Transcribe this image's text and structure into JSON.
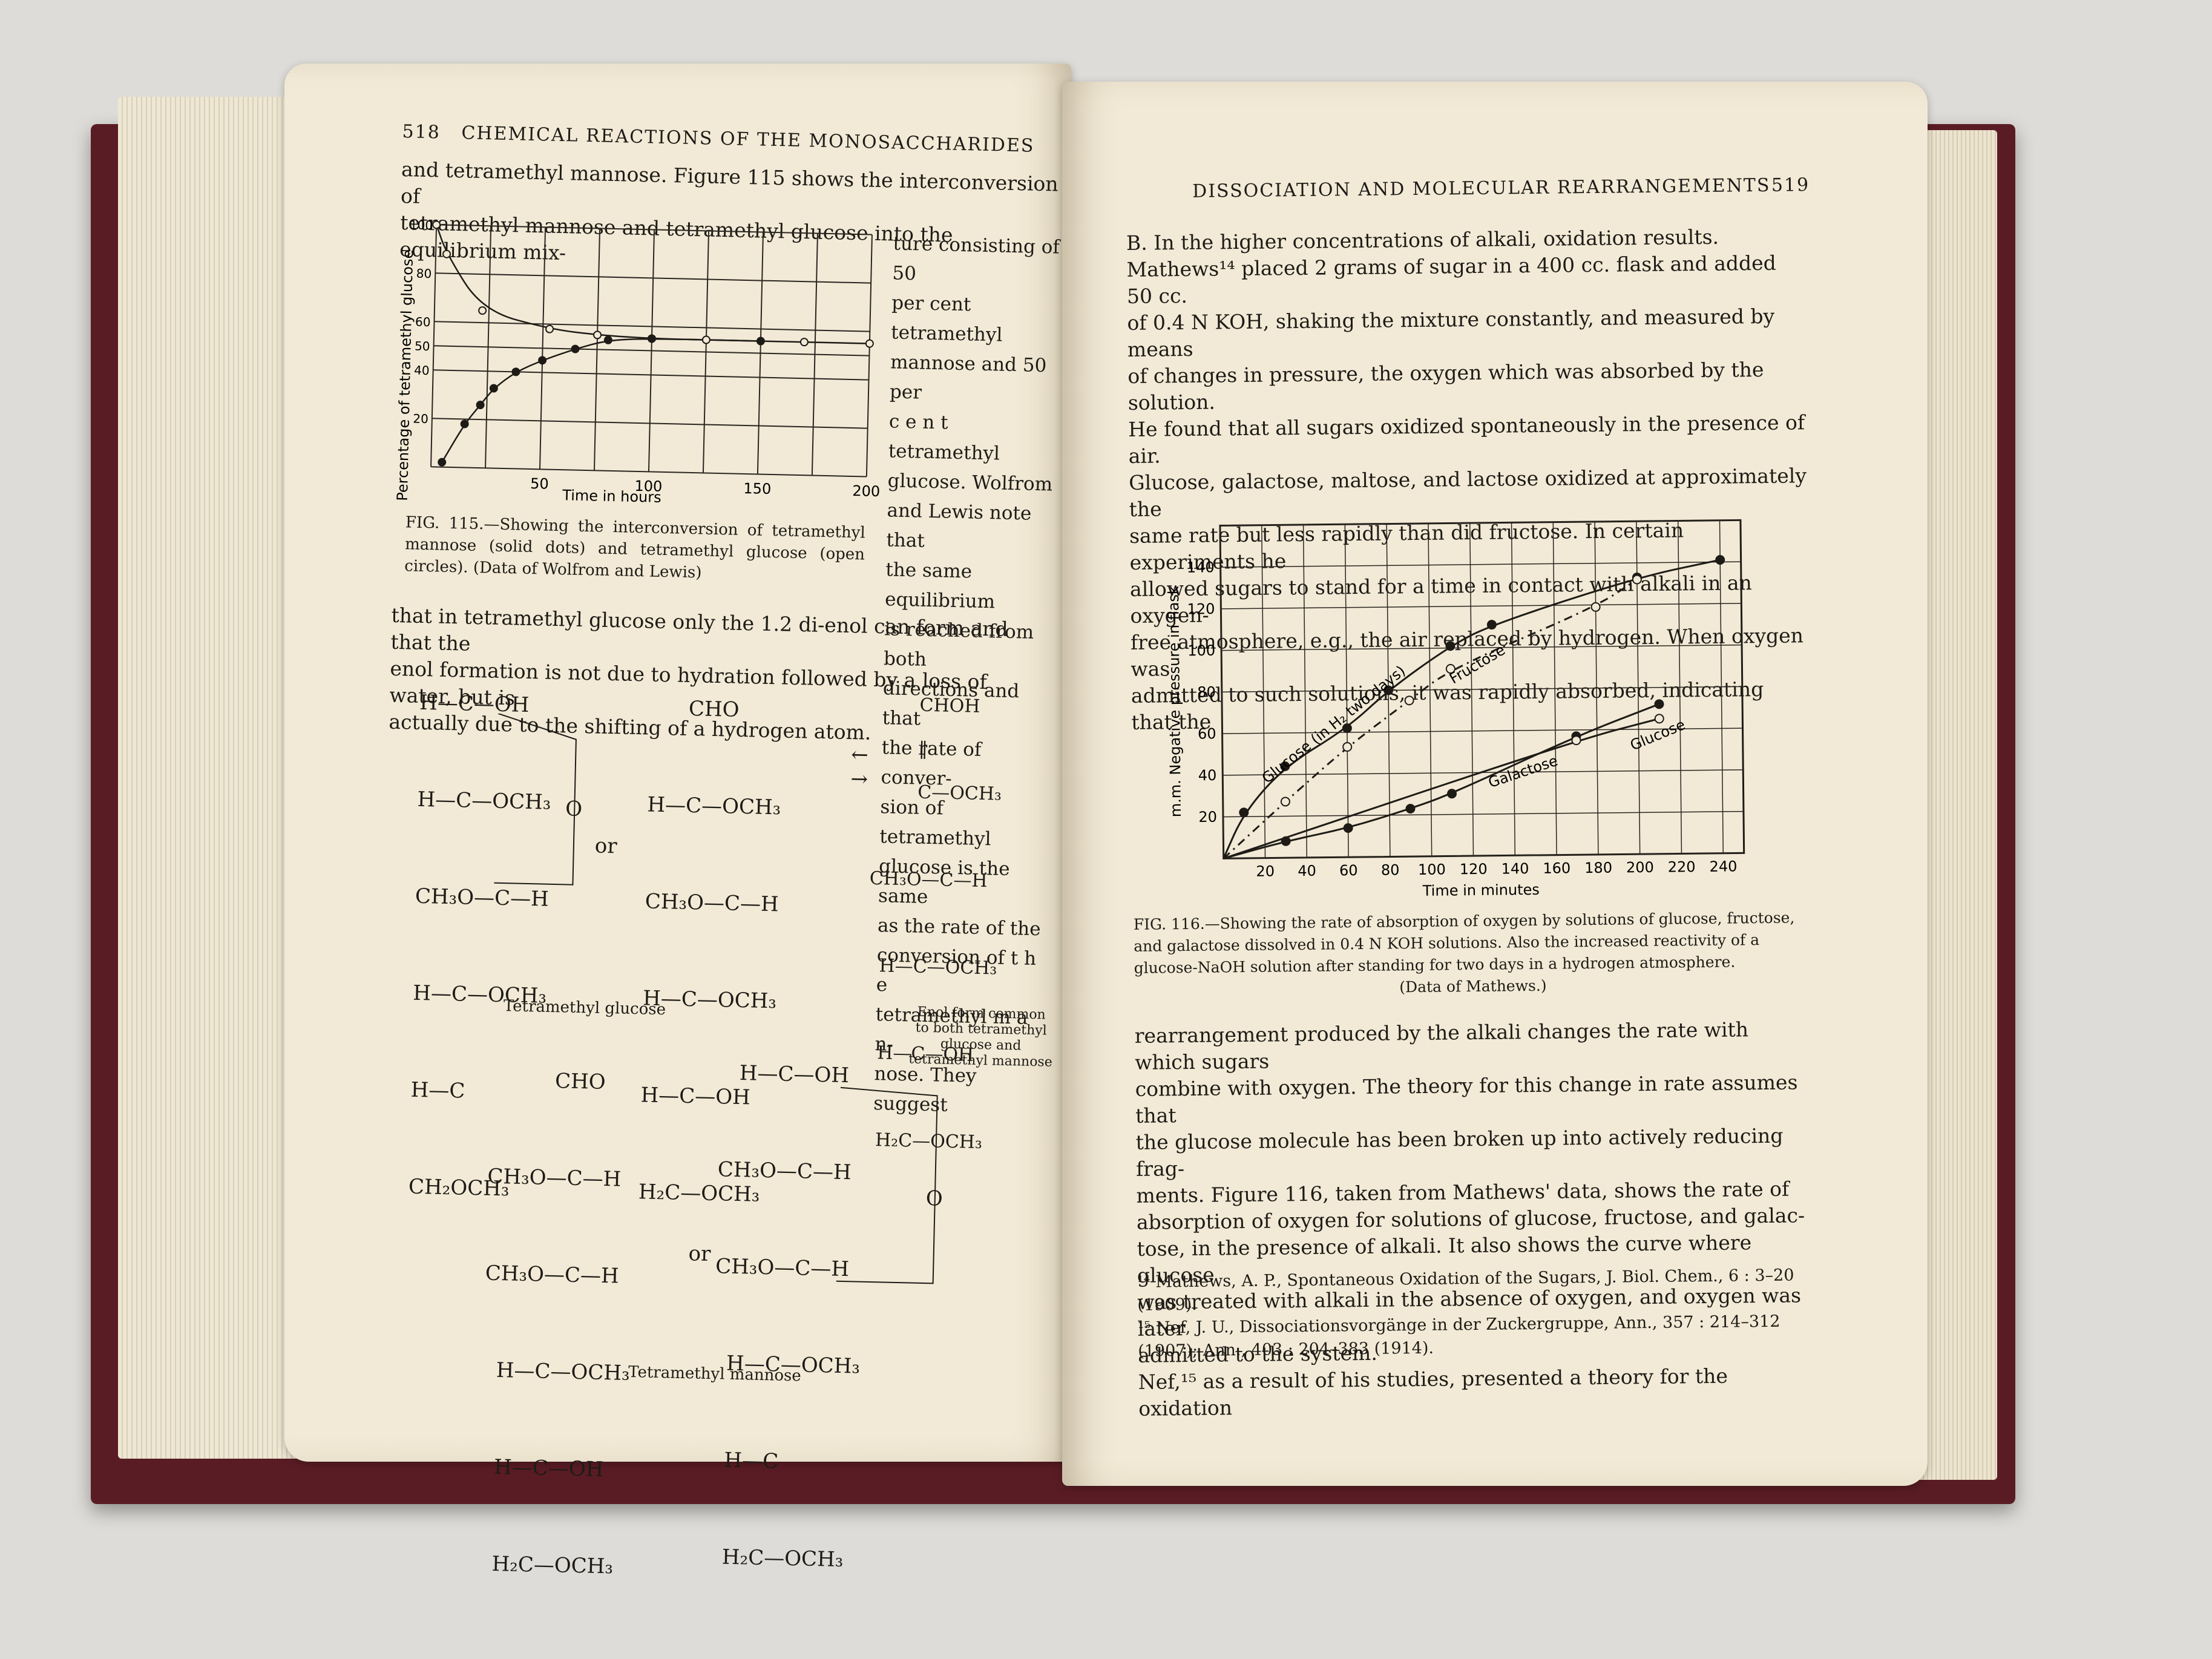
{
  "left_page": {
    "page_number": "518",
    "running_head": "CHEMICAL REACTIONS OF THE MONOSACCHARIDES",
    "intro_lines": [
      "and tetramethyl mannose.  Figure 115 shows the interconversion of",
      "tetramethyl mannose and tetramethyl glucose into the equilibrium mix-"
    ],
    "side_text_lines": [
      "ture consisting of 50",
      "per cent tetramethyl",
      "mannose and 50 per",
      "c e n t   tetramethyl",
      "glucose.    Wolfrom",
      "and Lewis note that",
      "the same equilibrium",
      "is reached from both",
      "directions and that",
      "the rate of conver-",
      "sion of tetramethyl",
      "glucose is the same",
      "as the rate of the",
      "conversion of t h e",
      "tetramethyl m a n-",
      "nose.  They suggest"
    ],
    "figure_caption": "FIG. 115.—Showing the interconversion of tetramethyl mannose (solid dots) and tetramethyl glucose (open circles).  (Data of Wolfrom and Lewis)",
    "after_lines": [
      "that in tetramethyl glucose only the 1.2 di-enol can form and that the",
      "enol formation is not due to hydration followed by a loss of water, but is",
      "actually due to the shifting of a hydrogen atom."
    ],
    "structures": {
      "s1": "H—C—OH\n\nH—C—OCH₃\n\nCH₃O—C—H\n\nH—C—OCH₃\n\nH—C\n\nCH₂OCH₃",
      "s1_label": "Tetramethyl glucose",
      "s1_ring_o": "O",
      "or1": "or",
      "s2": "      CHO\n\nH—C—OCH₃\n\nCH₃O—C—H\n\nH—C—OCH₃\n\nH—C—OH\n\nH₂C—OCH₃",
      "arrows": "←\n→",
      "s3": "        CHOH\n        ‖\n        C—OCH₃\n\nCH₃O—C—H\n\n  H—C—OCH₃\n\n  H—C—OH\n\n  H₂C—OCH₃",
      "s3_label": "Enol form common to both tetramethyl glucose and tetramethyl mannose",
      "s4": "          CHO\n\nCH₃O—C—H\n\nCH₃O—C—H\n\n  H—C—OCH₃\n\n  H—C—OH\n\n  H₂C—OCH₃",
      "or2": "or",
      "s5": "   H—C—OH\n\nCH₃O—C—H\n\nCH₃O—C—H\n\n  H—C—OCH₃\n\n  H—C\n\n  H₂C—OCH₃",
      "s5_ring_o": "O",
      "s45_label": "Tetramethyl mannose"
    }
  },
  "right_page": {
    "running_head": "DISSOCIATION AND MOLECULAR REARRANGEMENTS",
    "page_number": "519",
    "para1_lines": [
      "B. In  the  higher  concentrations  of  alkali,  oxidation  results.",
      "Mathews¹⁴ placed 2 grams of sugar in a 400 cc. flask and added 50 cc.",
      "of 0.4 N KOH, shaking the mixture constantly, and measured by means",
      "of changes in pressure, the oxygen which was absorbed by the solution.",
      "He found that all sugars oxidized spontaneously in the presence of air.",
      "Glucose, galactose, maltose, and lactose oxidized at approximately the",
      "same rate but less rapidly than did fructose.  In certain experiments he",
      "allowed sugars to stand for a time in contact with alkali in an oxygen-",
      "free atmosphere, e.g., the air replaced by hydrogen.  When oxygen was",
      "admitted to such solutions, it was rapidly absorbed, indicating that the"
    ],
    "figure_caption_lines": [
      "FIG. 116.—Showing the rate of absorption of oxygen by solutions of glucose, fructose,",
      "and galactose dissolved in 0.4 N KOH solutions.  Also the increased reactivity of a",
      "glucose-NaOH solution after standing for two days in a hydrogen atmosphere.",
      "(Data of Mathews.)"
    ],
    "para2_lines": [
      "rearrangement produced by the alkali changes the rate with which sugars",
      "combine with oxygen.  The theory for this change in rate assumes that",
      "the glucose molecule has been broken up into actively reducing frag-",
      "ments.  Figure 116, taken from Mathews' data, shows the rate of",
      "absorption of oxygen for solutions of glucose, fructose, and galac-",
      "tose, in the presence of alkali.  It also shows the curve where glucose",
      "was treated with alkali in the absence of oxygen, and oxygen was later",
      "admitted to the system.",
      "     Nef,¹⁵ as a result of his studies, presented a theory for the oxidation"
    ],
    "footnotes": [
      "¹⁴ Mathews, A. P., Spontaneous Oxidation of the Sugars, J. Biol. Chem., 6 : 3–20 (1909).",
      "¹⁵ Nef, J. U., Dissociationsvorgänge in der Zuckergruppe, Ann., 357 : 214–312 (1907); Ann., 403 : 204–383 (1914)."
    ]
  },
  "chart_data": [
    {
      "type": "scatter",
      "xlabel": "Time in hours",
      "ylabel": "Percentage of tetramethyl glucose",
      "xticks": [
        "50",
        "100",
        "150",
        "200"
      ],
      "yticks": [
        "100",
        "80",
        "60",
        "50",
        "40",
        "20"
      ],
      "xlim": [
        0,
        200
      ],
      "ylim": [
        0,
        100
      ],
      "grid": true,
      "series": [
        {
          "name": "tetramethyl glucose",
          "marker": "open",
          "x": [
            0,
            5,
            22,
            53,
            75,
            100,
            125,
            170,
            200
          ],
          "y": [
            100,
            88,
            65,
            58,
            56,
            55,
            55,
            55,
            55
          ]
        },
        {
          "name": "tetramethyl mannose",
          "marker": "solid",
          "x": [
            5,
            15,
            22,
            28,
            38,
            50,
            65,
            80,
            100,
            150
          ],
          "y": [
            2,
            18,
            26,
            33,
            40,
            45,
            50,
            54,
            55,
            55
          ]
        }
      ]
    },
    {
      "type": "line",
      "xlabel": "Time in minutes",
      "ylabel": "m.m. Negative pressure in flask",
      "xticks": [
        "20",
        "40",
        "60",
        "80",
        "100",
        "120",
        "140",
        "160",
        "180",
        "200",
        "220",
        "240"
      ],
      "yticks": [
        "20",
        "40",
        "60",
        "80",
        "100",
        "120",
        "140"
      ],
      "xlim": [
        0,
        250
      ],
      "ylim": [
        0,
        160
      ],
      "grid": true,
      "series": [
        {
          "name": "Glucose (in H₂ two days)",
          "marker": "solid",
          "x": [
            10,
            30,
            60,
            80,
            110,
            130,
            200,
            240
          ],
          "y": [
            22,
            44,
            62,
            80,
            101,
            111,
            133,
            141
          ]
        },
        {
          "name": "Fructose",
          "marker": "open",
          "x": [
            30,
            60,
            90,
            110,
            180,
            200
          ],
          "y": [
            27,
            53,
            75,
            90,
            119,
            132
          ]
        },
        {
          "name": "Galactose",
          "marker": "solid",
          "x": [
            30,
            60,
            90,
            110,
            170,
            210
          ],
          "y": [
            8,
            14,
            23,
            30,
            57,
            72
          ]
        },
        {
          "name": "Glucose",
          "marker": "open",
          "x": [
            170,
            210
          ],
          "y": [
            55,
            65
          ]
        }
      ],
      "labels": [
        "Glucose (in H₂ two days)",
        "Fructose",
        "Galactose",
        "Glucose"
      ]
    }
  ]
}
